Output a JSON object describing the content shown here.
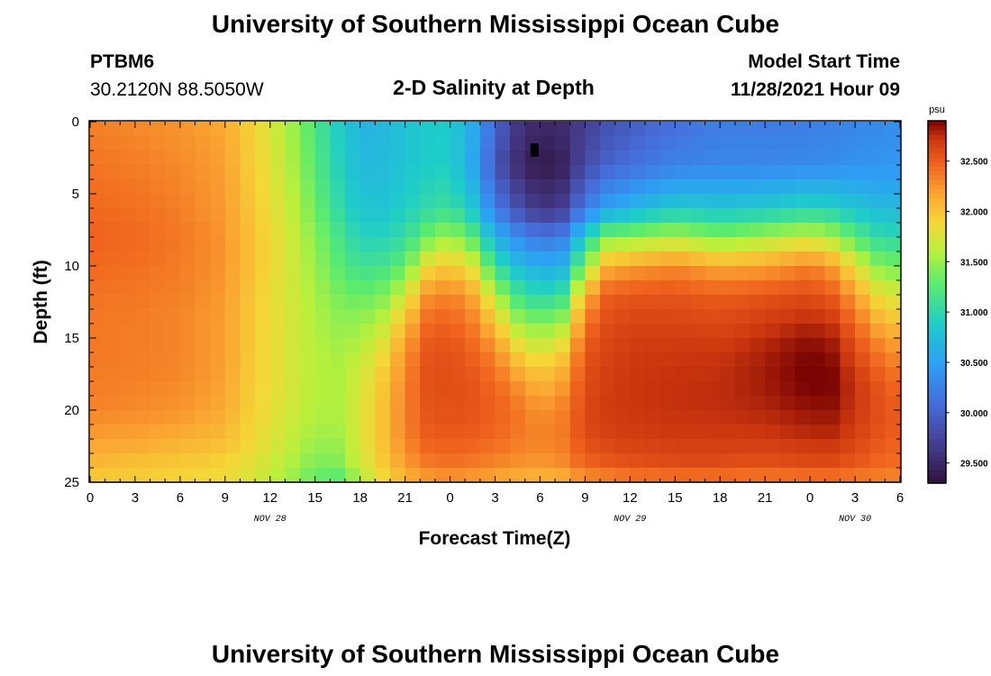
{
  "page": {
    "title": "University of Southern Mississippi Ocean Cube",
    "station": "PTBM6",
    "coordinates": "30.2120N  88.5050W",
    "subtitle": "2-D Salinity at Depth",
    "model_start_label": "Model Start Time",
    "model_start_value": "11/28/2021 Hour 09",
    "footer_title": "University of Southern Mississippi Ocean Cube"
  },
  "chart_data": {
    "type": "heatmap",
    "title": "2-D Salinity at Depth",
    "xlabel": "Forecast Time(Z)",
    "ylabel": "Depth (ft)",
    "x_range_hours": [
      0,
      54
    ],
    "y_range_ft": [
      0,
      25
    ],
    "x_tick_hours": [
      0,
      3,
      6,
      9,
      12,
      15,
      18,
      21,
      24,
      27,
      30,
      33,
      36,
      39,
      42,
      45,
      48,
      51,
      54
    ],
    "x_tick_labels": [
      "0",
      "3",
      "6",
      "9",
      "12",
      "15",
      "18",
      "21",
      "0",
      "3",
      "6",
      "9",
      "12",
      "15",
      "18",
      "21",
      "0",
      "3",
      "6"
    ],
    "y_ticks": [
      0,
      5,
      10,
      15,
      20,
      25
    ],
    "y_tick_labels": [
      "0",
      "5",
      "10",
      "15",
      "20",
      "25"
    ],
    "date_labels": [
      {
        "text": "NOV 28",
        "hour": 12
      },
      {
        "text": "NOV 29",
        "hour": 36
      },
      {
        "text": "NOV 30",
        "hour": 51
      }
    ],
    "colorbar": {
      "unit": "psu",
      "range": [
        29.3,
        32.9
      ],
      "ticks": [
        29.5,
        30.0,
        30.5,
        31.0,
        31.5,
        32.0,
        32.5
      ],
      "tick_labels": [
        "29.500",
        "30.000",
        "30.500",
        "31.000",
        "31.500",
        "32.000",
        "32.500"
      ]
    },
    "marker": {
      "hour": 29.6,
      "depth_ft": 2.0
    },
    "grid_cells": {
      "nx": 54,
      "ny": 25
    },
    "profile_hours": [
      0,
      3,
      6,
      9,
      10.5,
      12,
      13.5,
      15,
      16.5,
      18,
      19.5,
      21,
      22.5,
      24,
      25.5,
      27,
      28.5,
      30,
      31.5,
      33,
      34.5,
      36,
      39,
      42,
      45,
      48,
      49.5,
      51,
      52.5,
      54
    ],
    "profile_depths_ft": [
      0,
      3,
      6,
      8,
      10,
      12,
      14,
      16,
      18,
      20,
      22,
      24,
      25
    ],
    "salinity_psu": [
      [
        32.35,
        32.4,
        32.45,
        32.48,
        32.45,
        32.4,
        32.38,
        32.38,
        32.36,
        32.32,
        32.2,
        32.05,
        31.95
      ],
      [
        32.3,
        32.36,
        32.42,
        32.45,
        32.42,
        32.38,
        32.36,
        32.36,
        32.34,
        32.3,
        32.18,
        32.0,
        31.92
      ],
      [
        32.25,
        32.3,
        32.35,
        32.38,
        32.36,
        32.34,
        32.32,
        32.32,
        32.3,
        32.26,
        32.12,
        31.95,
        31.88
      ],
      [
        32.15,
        32.2,
        32.22,
        32.25,
        32.25,
        32.22,
        32.2,
        32.2,
        32.18,
        32.15,
        32.05,
        31.9,
        31.85
      ],
      [
        31.95,
        31.98,
        32.02,
        32.05,
        32.05,
        32.02,
        32.0,
        32.0,
        31.98,
        31.95,
        31.9,
        31.8,
        31.75
      ],
      [
        31.75,
        31.8,
        31.85,
        31.88,
        31.88,
        31.85,
        31.85,
        31.85,
        31.85,
        31.82,
        31.78,
        31.68,
        31.62
      ],
      [
        31.5,
        31.55,
        31.62,
        31.68,
        31.7,
        31.7,
        31.72,
        31.72,
        31.72,
        31.7,
        31.65,
        31.55,
        31.48
      ],
      [
        31.2,
        31.25,
        31.35,
        31.45,
        31.5,
        31.55,
        31.58,
        31.6,
        31.6,
        31.58,
        31.5,
        31.38,
        31.28
      ],
      [
        30.9,
        30.95,
        31.05,
        31.18,
        31.28,
        31.4,
        31.48,
        31.55,
        31.58,
        31.58,
        31.52,
        31.4,
        31.2
      ],
      [
        30.65,
        30.7,
        30.8,
        30.95,
        31.1,
        31.3,
        31.48,
        31.62,
        31.72,
        31.75,
        31.75,
        31.68,
        31.5
      ],
      [
        30.7,
        30.72,
        30.8,
        30.95,
        31.15,
        31.4,
        31.65,
        31.85,
        31.98,
        32.02,
        32.02,
        31.95,
        31.85
      ],
      [
        30.78,
        30.8,
        30.9,
        31.05,
        31.3,
        31.7,
        32.05,
        32.25,
        32.32,
        32.34,
        32.32,
        32.2,
        32.05
      ],
      [
        30.85,
        30.88,
        31.02,
        31.35,
        31.85,
        32.25,
        32.45,
        32.55,
        32.58,
        32.55,
        32.5,
        32.35,
        32.15
      ],
      [
        30.85,
        30.9,
        31.1,
        31.55,
        32.0,
        32.35,
        32.5,
        32.58,
        32.6,
        32.58,
        32.52,
        32.4,
        32.2
      ],
      [
        30.6,
        30.55,
        30.8,
        31.25,
        31.75,
        32.15,
        32.35,
        32.48,
        32.55,
        32.55,
        32.5,
        32.35,
        32.15
      ],
      [
        30.05,
        29.9,
        30.2,
        30.65,
        31.1,
        31.6,
        32.0,
        32.3,
        32.45,
        32.5,
        32.45,
        32.3,
        32.12
      ],
      [
        29.65,
        29.55,
        29.85,
        30.35,
        30.75,
        31.15,
        31.55,
        31.95,
        32.25,
        32.4,
        32.38,
        32.25,
        32.05
      ],
      [
        29.5,
        29.35,
        29.6,
        30.15,
        30.58,
        30.95,
        31.4,
        31.75,
        32.05,
        32.25,
        32.32,
        32.22,
        32.02
      ],
      [
        29.55,
        29.45,
        29.7,
        30.25,
        30.65,
        31.1,
        31.55,
        31.95,
        32.2,
        32.35,
        32.38,
        32.28,
        32.05
      ],
      [
        29.7,
        29.8,
        30.2,
        30.9,
        31.45,
        32.1,
        32.4,
        32.55,
        32.6,
        32.62,
        32.6,
        32.45,
        32.2
      ],
      [
        29.85,
        30.0,
        30.5,
        31.4,
        32.1,
        32.5,
        32.6,
        32.65,
        32.68,
        32.7,
        32.65,
        32.5,
        32.25
      ],
      [
        29.95,
        30.1,
        30.65,
        31.45,
        32.2,
        32.55,
        32.65,
        32.7,
        32.72,
        32.72,
        32.68,
        32.55,
        32.3
      ],
      [
        30.1,
        30.25,
        30.85,
        31.6,
        32.3,
        32.55,
        32.65,
        32.72,
        32.74,
        32.74,
        32.7,
        32.58,
        32.32
      ],
      [
        30.2,
        30.3,
        30.8,
        31.4,
        32.15,
        32.5,
        32.62,
        32.72,
        32.75,
        32.75,
        32.7,
        32.58,
        32.32
      ],
      [
        30.2,
        30.3,
        30.85,
        31.55,
        32.2,
        32.55,
        32.7,
        32.8,
        32.82,
        32.78,
        32.7,
        32.55,
        32.3
      ],
      [
        30.22,
        30.32,
        30.95,
        31.7,
        32.35,
        32.6,
        32.78,
        32.9,
        32.92,
        32.85,
        32.75,
        32.58,
        32.32
      ],
      [
        30.25,
        30.35,
        30.9,
        31.55,
        32.2,
        32.5,
        32.72,
        32.85,
        32.9,
        32.85,
        32.75,
        32.58,
        32.32
      ],
      [
        30.3,
        30.38,
        30.8,
        31.25,
        31.8,
        32.2,
        32.45,
        32.62,
        32.72,
        32.72,
        32.65,
        32.52,
        32.3
      ],
      [
        30.32,
        30.4,
        30.72,
        31.05,
        31.45,
        31.85,
        32.15,
        32.4,
        32.55,
        32.6,
        32.55,
        32.45,
        32.28
      ],
      [
        30.35,
        30.42,
        30.7,
        31.0,
        31.35,
        31.7,
        32.0,
        32.25,
        32.42,
        32.5,
        32.48,
        32.42,
        32.25
      ]
    ]
  }
}
